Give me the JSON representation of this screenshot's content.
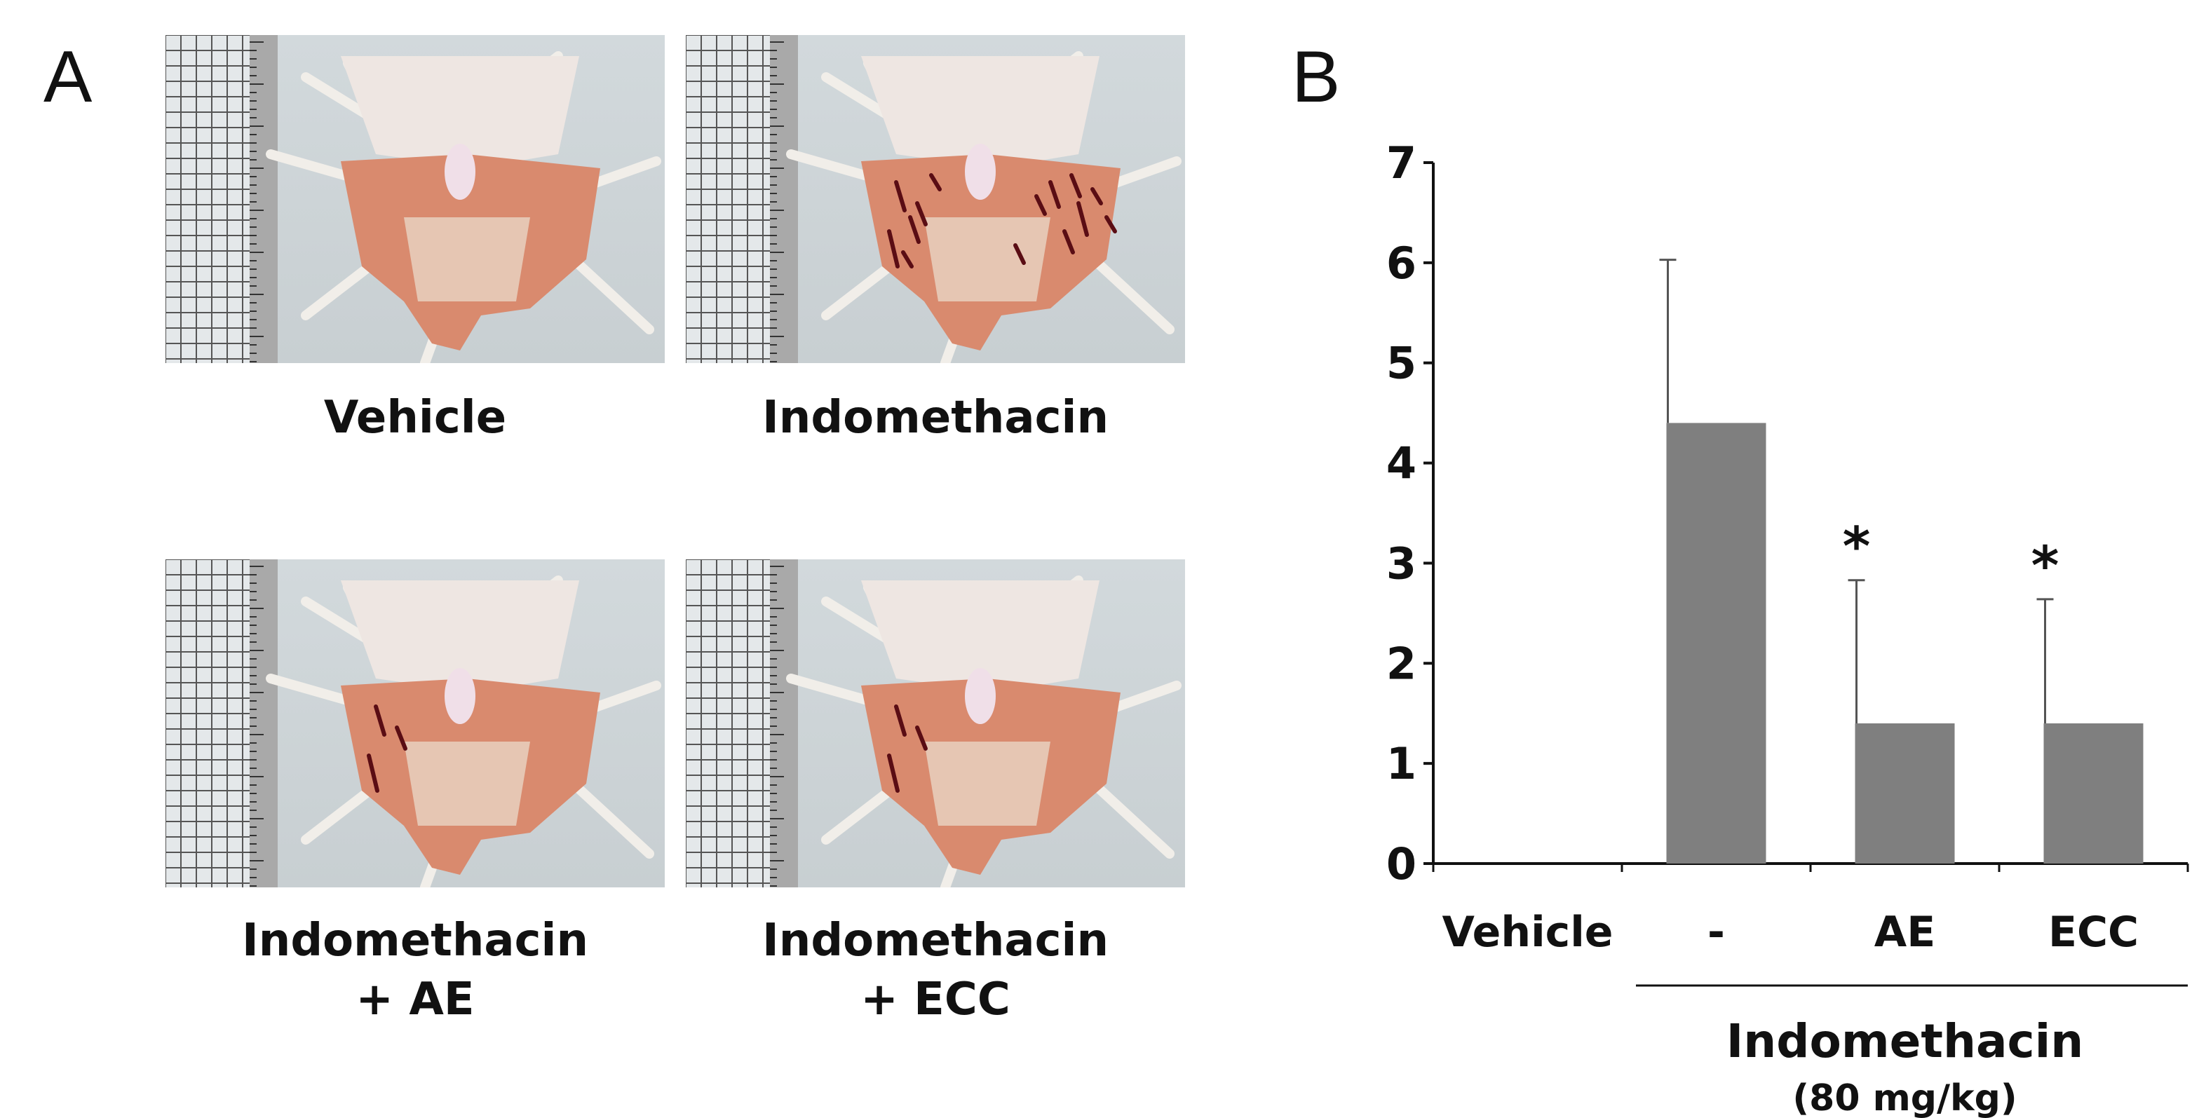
{
  "panels": {
    "a": "A",
    "b": "B"
  },
  "photos": [
    {
      "caption_line1": "Vehicle",
      "caption_line2": "",
      "lesions": 0
    },
    {
      "caption_line1": "Indomethacin",
      "caption_line2": "",
      "lesions": 14
    },
    {
      "caption_line1": "Indomethacin",
      "caption_line2": "+ AE",
      "lesions": 3
    },
    {
      "caption_line1": "Indomethacin",
      "caption_line2": "+ ECC",
      "lesions": 3
    }
  ],
  "colors": {
    "bar": "#7f7f7f",
    "axis": "#111111",
    "mucosa": "#d98a6e",
    "forestomach": "#eee6e2"
  },
  "chart_data": {
    "type": "bar",
    "categories": [
      "Vehicle",
      "-",
      "AE",
      "ECC"
    ],
    "values": [
      0,
      4.4,
      1.4,
      1.4
    ],
    "error_plus": [
      0,
      1.63,
      1.43,
      1.24
    ],
    "significance": [
      "",
      "",
      "*",
      "*"
    ],
    "ylim": [
      0,
      7
    ],
    "yticks": [
      "0",
      "1",
      "2",
      "3",
      "4",
      "5",
      "6",
      "7"
    ],
    "group_label": "Indomethacin",
    "group_sublabel": "(80 mg/kg)",
    "grid": false
  }
}
